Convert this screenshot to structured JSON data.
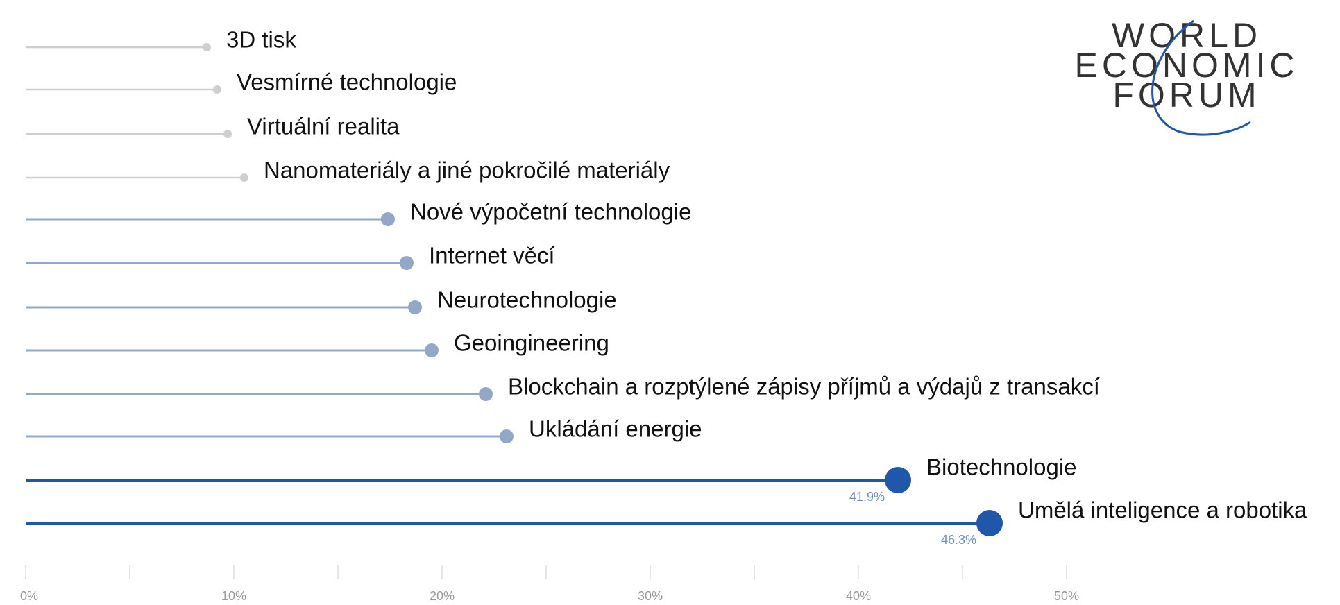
{
  "chart_data": {
    "type": "lollipop",
    "logo": [
      "WORLD",
      "ECONOMIC",
      "FORUM"
    ],
    "categories": [
      "3D tisk",
      "Vesmírné technologie",
      "Virtuální realita",
      "Nanomateriály a jiné pokročilé materiály",
      "Nové výpočetní technologie",
      "Internet věcí",
      "Neurotechnologie",
      "Geoingineering",
      "Blockchain a rozptýlené zápisy příjmů a výdajů z transakcí",
      "Ukládání energie",
      "Biotechnologie",
      "Umělá inteligence a robotika"
    ],
    "values": [
      8.7,
      9.2,
      9.7,
      10.5,
      17.4,
      18.3,
      18.7,
      19.5,
      22.1,
      23.1,
      41.9,
      46.3
    ],
    "value_labels": [
      null,
      null,
      null,
      null,
      null,
      null,
      null,
      null,
      null,
      null,
      "41.9%",
      "46.3%"
    ],
    "colors": [
      "#cfcfcf",
      "#cfcfcf",
      "#cfcfcf",
      "#cfcfcf",
      "#93a8c8",
      "#93a8c8",
      "#93a8c8",
      "#93a8c8",
      "#93a8c8",
      "#93a8c8",
      "#1f57ab",
      "#1f57ab"
    ],
    "xlim": [
      0,
      63
    ],
    "xticks": [
      {
        "value": 0,
        "label": "0%"
      },
      {
        "value": 10,
        "label": "10%"
      },
      {
        "value": 20,
        "label": "20%"
      },
      {
        "value": 30,
        "label": "30%"
      },
      {
        "value": 40,
        "label": "40%"
      },
      {
        "value": 50,
        "label": "50%"
      }
    ],
    "minor_xticks": [
      5,
      15,
      25,
      35,
      45
    ]
  }
}
